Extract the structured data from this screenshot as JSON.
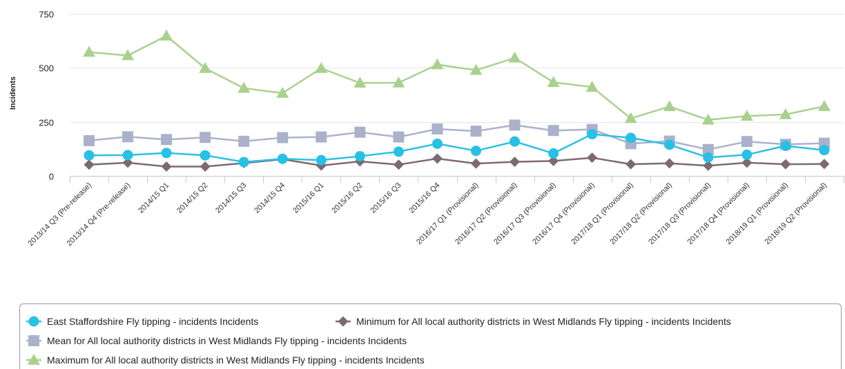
{
  "chart_data": {
    "type": "line",
    "ylabel": "Incidents",
    "ylim": [
      0,
      750
    ],
    "yticks": [
      "0",
      "250",
      "500",
      "750"
    ],
    "grid": true,
    "legend_position": "bottom",
    "categories": [
      "2013/14 Q3 (Pre-release)",
      "2013/14 Q4 (Pre-release)",
      "2014/15 Q1",
      "2014/15 Q2",
      "2014/15 Q3",
      "2014/15 Q4",
      "2015/16 Q1",
      "2015/16 Q2",
      "2015/16 Q3",
      "2015/16 Q4",
      "2016/17 Q1 (Provisional)",
      "2016/17 Q2 (Provisional)",
      "2016/17 Q3 (Provisional)",
      "2016/17 Q4 (Provisional)",
      "2017/18 Q1 (Provisional)",
      "2017/18 Q2 (Provisional)",
      "2017/18 Q3 (Provisional)",
      "2017/18 Q4 (Provisional)",
      "2018/19 Q1 (Provisional)",
      "2018/19 Q2 (Provisional)"
    ],
    "series": [
      {
        "name": "East Staffordshire Fly tipping - incidents Incidents",
        "color": "#29c0e6",
        "marker": "circle",
        "values": [
          95,
          96,
          106,
          95,
          64,
          79,
          73,
          91,
          112,
          149,
          116,
          159,
          104,
          193,
          176,
          144,
          85,
          98,
          139,
          119
        ]
      },
      {
        "name": "Minimum for All local authority districts in West Midlands Fly tipping - incidents Incidents",
        "color": "#7d6970",
        "marker": "diamond",
        "values": [
          52,
          61,
          43,
          43,
          59,
          77,
          48,
          67,
          52,
          80,
          57,
          65,
          69,
          84,
          54,
          58,
          47,
          61,
          54,
          55
        ]
      },
      {
        "name": "Mean for All local authority districts in West Midlands Fly tipping - incidents Incidents",
        "color": "#aab2cb",
        "marker": "square",
        "values": [
          163,
          181,
          168,
          178,
          160,
          177,
          180,
          202,
          180,
          217,
          207,
          235,
          210,
          215,
          149,
          161,
          122,
          159,
          146,
          151
        ]
      },
      {
        "name": "Maximum for All local authority districts in West Midlands Fly tipping - incidents Incidents",
        "color": "#a9d18e",
        "marker": "triangle",
        "values": [
          573,
          557,
          648,
          498,
          406,
          383,
          498,
          430,
          431,
          515,
          489,
          546,
          433,
          411,
          266,
          321,
          259,
          277,
          284,
          322
        ]
      }
    ]
  }
}
